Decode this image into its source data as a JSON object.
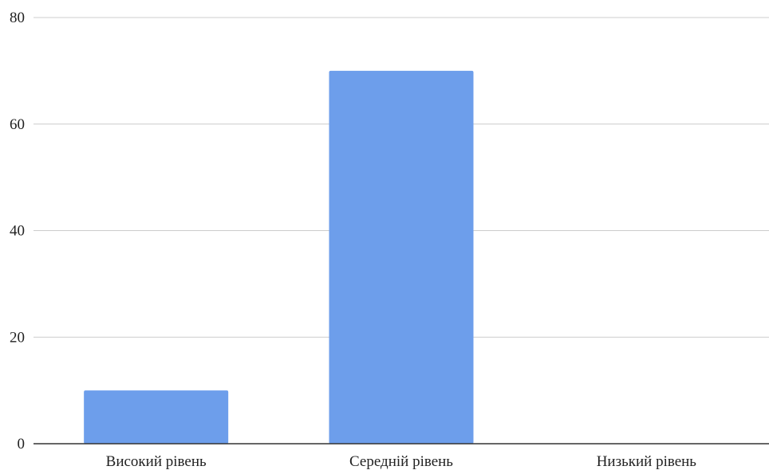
{
  "chart_data": {
    "type": "bar",
    "title": "",
    "xlabel": "",
    "ylabel": "",
    "categories": [
      "Високий рівень",
      "Середній рівень",
      "Низький рівень"
    ],
    "values": [
      10,
      70,
      0
    ],
    "ylim": [
      0,
      80
    ],
    "yticks": [
      0,
      20,
      40,
      60,
      80
    ],
    "grid": true,
    "legend": "none",
    "colors": {
      "bar": "#6d9eeb",
      "grid": "#cccccc",
      "axis": "#333333",
      "text": "#222222"
    }
  }
}
